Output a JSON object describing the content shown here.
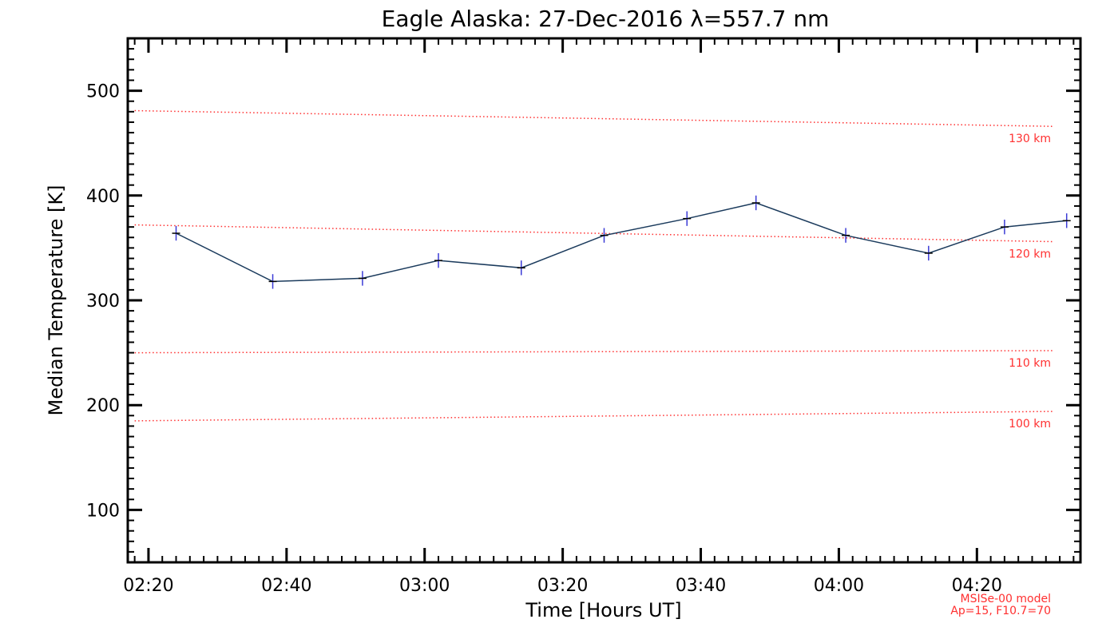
{
  "chart_data": {
    "type": "line",
    "title": "Eagle Alaska: 27-Dec-2016 λ=557.7 nm",
    "xlabel": "Time [Hours UT]",
    "ylabel": "Median Temperature [K]",
    "xlim": [
      "02:17",
      "04:35"
    ],
    "ylim": [
      50,
      550
    ],
    "x_ticks": [
      "02:20",
      "02:40",
      "03:00",
      "03:20",
      "03:40",
      "04:00",
      "04:20"
    ],
    "y_ticks": [
      100,
      200,
      300,
      400,
      500
    ],
    "grid": false,
    "series": [
      {
        "x": [
          "02:24",
          "02:38",
          "02:51",
          "03:02",
          "03:14",
          "03:26",
          "03:38",
          "03:48",
          "04:01",
          "04:13",
          "04:24",
          "04:33"
        ],
        "y": [
          364,
          318,
          321,
          338,
          331,
          362,
          378,
          393,
          362,
          345,
          370,
          376
        ],
        "error": [
          7,
          7,
          7,
          7,
          7,
          7,
          7,
          7,
          7,
          7,
          7,
          7
        ],
        "color": "#1a3a5c"
      }
    ],
    "model_lines": [
      {
        "name": "130 km",
        "x": [
          "02:18",
          "04:31"
        ],
        "y": [
          481,
          466
        ]
      },
      {
        "name": "120 km",
        "x": [
          "02:18",
          "04:31"
        ],
        "y": [
          372,
          356
        ]
      },
      {
        "name": "110 km",
        "x": [
          "02:18",
          "04:31"
        ],
        "y": [
          250,
          252
        ]
      },
      {
        "name": "100 km",
        "x": [
          "02:18",
          "04:31"
        ],
        "y": [
          185,
          194
        ]
      }
    ],
    "model_color": "#ff3030",
    "note_lines": [
      "MSISe-00 model",
      "Ap=15, F10.7=70"
    ]
  }
}
